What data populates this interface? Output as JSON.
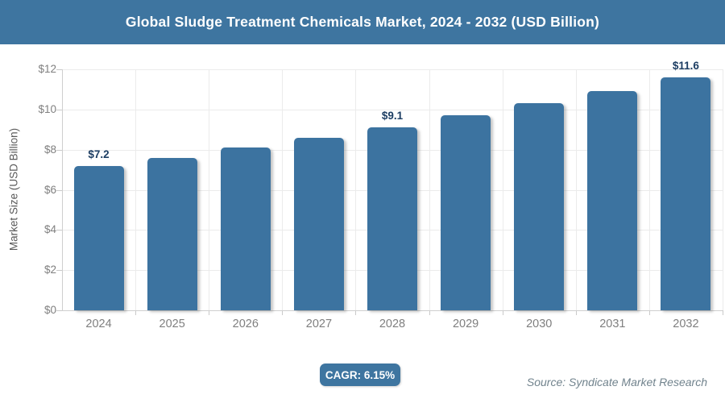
{
  "header": {
    "title": "Global Sludge Treatment Chemicals Market, 2024 - 2032 (USD Billion)"
  },
  "chart_data": {
    "type": "bar",
    "title": "Global Sludge Treatment Chemicals Market, 2024 - 2032 (USD Billion)",
    "categories": [
      "2024",
      "2025",
      "2026",
      "2027",
      "2028",
      "2029",
      "2030",
      "2031",
      "2032"
    ],
    "values": [
      7.2,
      7.6,
      8.1,
      8.6,
      9.1,
      9.7,
      10.3,
      10.9,
      11.6
    ],
    "point_labels": [
      "$7.2",
      "",
      "",
      "",
      "$9.1",
      "",
      "",
      "",
      "$11.6"
    ],
    "xlabel": "",
    "ylabel": "Market Size (USD Billion)",
    "ylim": [
      0,
      12
    ],
    "ytick_labels": [
      "$0",
      "$2",
      "$4",
      "$6",
      "$8",
      "$10",
      "$12"
    ],
    "grid": true,
    "legend": false,
    "bar_color": "#3c73a0",
    "point_label_color": "#1d3e63",
    "accent_color": "#3e75a0"
  },
  "footer": {
    "cagr_label": "CAGR: 6.15%",
    "source": "Source: Syndicate Market Research"
  }
}
